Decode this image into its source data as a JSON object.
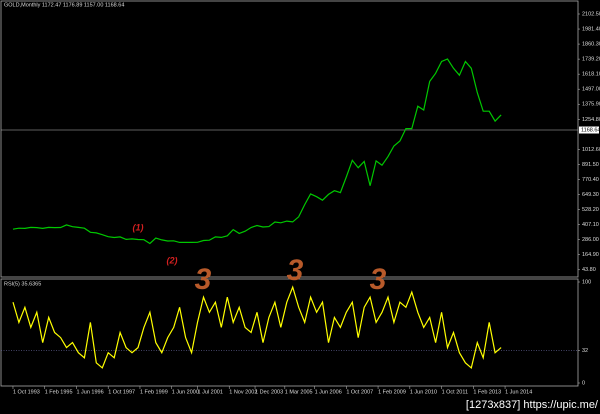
{
  "chart_data": [
    {
      "type": "line",
      "title": "GOLD,Monthly 1172.47 1176.89 1157.00 1168.64",
      "color": "#00c800",
      "x": [
        0,
        3,
        6,
        9,
        12,
        15,
        18,
        21,
        24,
        27,
        30,
        33,
        36,
        39,
        42,
        45,
        48,
        51,
        54,
        57,
        60,
        63,
        66,
        69,
        72,
        75,
        78,
        81,
        84,
        87,
        90,
        93,
        96,
        99,
        102,
        105,
        108,
        111,
        114,
        117,
        120,
        123,
        126,
        129,
        132,
        135,
        138,
        141,
        144,
        147,
        150,
        153,
        156,
        159,
        162,
        165,
        168,
        171,
        174,
        177,
        180,
        183,
        186,
        189,
        192,
        195,
        198,
        201,
        204,
        207,
        210,
        213,
        216,
        219,
        222,
        225,
        228,
        231,
        234,
        237,
        240,
        243,
        246
      ],
      "values": [
        370,
        378,
        377,
        385,
        383,
        377,
        385,
        383,
        384,
        405,
        390,
        385,
        378,
        345,
        340,
        326,
        310,
        303,
        308,
        288,
        292,
        287,
        286,
        255,
        299,
        284,
        275,
        277,
        264,
        265,
        264,
        265,
        279,
        282,
        308,
        304,
        317,
        367,
        336,
        354,
        384,
        400,
        388,
        391,
        428,
        422,
        435,
        429,
        470,
        568,
        654,
        632,
        604,
        650,
        680,
        665,
        790,
        925,
        865,
        915,
        720,
        920,
        885,
        955,
        1040,
        1080,
        1180,
        1180,
        1360,
        1330,
        1560,
        1625,
        1720,
        1740,
        1665,
        1610,
        1720,
        1665,
        1470,
        1320,
        1320,
        1240,
        1290
      ],
      "xlim": [
        -2,
        252
      ],
      "ylim": [
        -14.6,
        2215.2
      ],
      "yticks": [
        {
          "value": 2102.5,
          "label": "2102.50"
        },
        {
          "value": 1981.4,
          "label": "1981.40"
        },
        {
          "value": 1860.3,
          "label": "1860.30"
        },
        {
          "value": 1739.2,
          "label": "1739.20"
        },
        {
          "value": 1618.1,
          "label": "1618.10"
        },
        {
          "value": 1497,
          "label": "1497.00"
        },
        {
          "value": 1375.9,
          "label": "1375.90"
        },
        {
          "value": 1254.8,
          "label": "1254.80"
        },
        {
          "value": 1012.6,
          "label": "1012.60"
        },
        {
          "value": 891.5,
          "label": "891.50"
        },
        {
          "value": 770.4,
          "label": "770.40"
        },
        {
          "value": 649.3,
          "label": "649.30"
        },
        {
          "value": 528.2,
          "label": "528.20"
        },
        {
          "value": 407.1,
          "label": "407.10"
        },
        {
          "value": 286,
          "label": "286.00"
        },
        {
          "value": 164.9,
          "label": "164.90"
        },
        {
          "value": 43.8,
          "label": "43.80"
        }
      ],
      "current_price": {
        "value": 1168.64,
        "label": "1168.64"
      },
      "annotations": [
        {
          "text": "(1)",
          "color": "#d42020"
        },
        {
          "text": "(2)",
          "color": "#d42020"
        },
        {
          "text": "3",
          "color": "#b85a2a"
        },
        {
          "text": "3",
          "color": "#b85a2a"
        },
        {
          "text": "3",
          "color": "#b85a2a"
        }
      ]
    },
    {
      "type": "line",
      "title": "RSI(5) 35.6365",
      "color": "#ffff00",
      "x": [
        0,
        3,
        6,
        9,
        12,
        15,
        18,
        21,
        24,
        27,
        30,
        33,
        36,
        39,
        42,
        45,
        48,
        51,
        54,
        57,
        60,
        63,
        66,
        69,
        72,
        75,
        78,
        81,
        84,
        87,
        90,
        93,
        96,
        99,
        102,
        105,
        108,
        111,
        114,
        117,
        120,
        123,
        126,
        129,
        132,
        135,
        138,
        141,
        144,
        147,
        150,
        153,
        156,
        159,
        162,
        165,
        168,
        171,
        174,
        177,
        180,
        183,
        186,
        189,
        192,
        195,
        198,
        201,
        204,
        207,
        210,
        213,
        216,
        219,
        222,
        225,
        228,
        231,
        234,
        237,
        240,
        243,
        246
      ],
      "values": [
        80,
        60,
        75,
        55,
        70,
        40,
        65,
        50,
        45,
        35,
        40,
        30,
        25,
        60,
        20,
        15,
        30,
        25,
        50,
        35,
        30,
        35,
        55,
        70,
        40,
        30,
        45,
        55,
        75,
        45,
        30,
        60,
        85,
        70,
        80,
        55,
        85,
        60,
        75,
        55,
        50,
        70,
        40,
        65,
        80,
        55,
        80,
        95,
        75,
        60,
        85,
        70,
        80,
        40,
        65,
        55,
        70,
        80,
        45,
        75,
        85,
        60,
        70,
        85,
        60,
        80,
        75,
        90,
        70,
        55,
        65,
        40,
        70,
        35,
        50,
        30,
        20,
        15,
        40,
        25,
        60,
        30,
        35
      ],
      "xlim": [
        -2,
        252
      ],
      "ylim": [
        0,
        100
      ],
      "yticks": [
        100,
        32,
        0
      ],
      "level": 32,
      "xticks": [
        {
          "value": 0,
          "label": "1 Oct 1993"
        },
        {
          "value": 16,
          "label": "1 Feb 1995"
        },
        {
          "value": 32,
          "label": "1 Jun 1996"
        },
        {
          "value": 48,
          "label": "1 Oct 1997"
        },
        {
          "value": 64,
          "label": "1 Feb 1999"
        },
        {
          "value": 80,
          "label": "1 Jun 2000"
        },
        {
          "value": 93,
          "label": "1 Jul 2001"
        },
        {
          "value": 109,
          "label": "1 Nov 2002"
        },
        {
          "value": 122,
          "label": "1 Dec 2003"
        },
        {
          "value": 137,
          "label": "1 Mar 2005"
        },
        {
          "value": 152,
          "label": "1 Jun 2006"
        },
        {
          "value": 168,
          "label": "1 Oct 2007"
        },
        {
          "value": 184,
          "label": "1 Feb 2009"
        },
        {
          "value": 200,
          "label": "1 Jun 2010"
        },
        {
          "value": 216,
          "label": "1 Oct 2011"
        },
        {
          "value": 232,
          "label": "1 Feb 2013"
        },
        {
          "value": 248,
          "label": "1 Jun 2014"
        }
      ]
    }
  ],
  "watermark": "[1273x837] https://upic.me/"
}
